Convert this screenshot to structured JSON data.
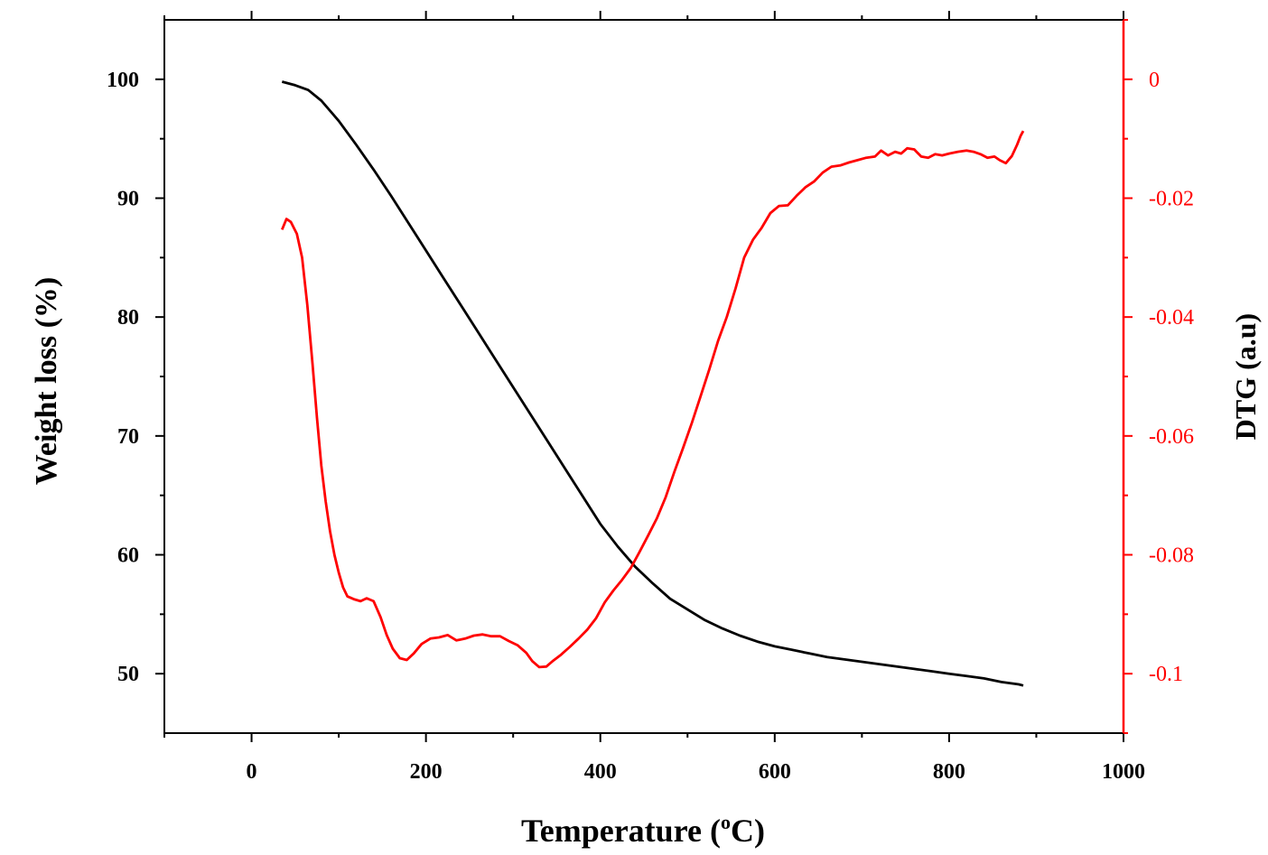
{
  "chart_data": {
    "type": "line",
    "xlabel": "Temperature (",
    "xlabel_sup": "o",
    "xlabel_tail": "C)",
    "ylabel_left": "Weight loss (%)",
    "ylabel_right": "DTG (a.u)",
    "xlim": [
      -100,
      1000
    ],
    "ylim_left": [
      45,
      105
    ],
    "ylim_right": [
      -0.11,
      0.01
    ],
    "x_ticks": [
      0,
      200,
      400,
      600,
      800,
      1000
    ],
    "y_left_ticks": [
      50,
      60,
      70,
      80,
      90,
      100
    ],
    "y_right_ticks": [
      0,
      -0.02,
      -0.04,
      -0.06,
      -0.08,
      -0.1
    ],
    "y_right_tick_labels": [
      "0",
      "-0.02",
      "-0.04",
      "-0.06",
      "-0.08",
      "-0.1"
    ],
    "grid": false,
    "colors": {
      "weight": "#000000",
      "dtg": "#ff0000"
    },
    "series": [
      {
        "axis": "left",
        "color": "#000000",
        "points": [
          [
            35,
            99.8
          ],
          [
            50,
            99.5
          ],
          [
            65,
            99.1
          ],
          [
            80,
            98.2
          ],
          [
            100,
            96.5
          ],
          [
            120,
            94.5
          ],
          [
            140,
            92.4
          ],
          [
            160,
            90.2
          ],
          [
            180,
            87.9
          ],
          [
            200,
            85.6
          ],
          [
            220,
            83.3
          ],
          [
            240,
            81.0
          ],
          [
            260,
            78.7
          ],
          [
            280,
            76.4
          ],
          [
            300,
            74.1
          ],
          [
            320,
            71.8
          ],
          [
            340,
            69.5
          ],
          [
            360,
            67.2
          ],
          [
            380,
            64.9
          ],
          [
            400,
            62.6
          ],
          [
            420,
            60.7
          ],
          [
            440,
            59.0
          ],
          [
            460,
            57.6
          ],
          [
            480,
            56.3
          ],
          [
            500,
            55.4
          ],
          [
            520,
            54.5
          ],
          [
            540,
            53.8
          ],
          [
            560,
            53.2
          ],
          [
            580,
            52.7
          ],
          [
            600,
            52.3
          ],
          [
            620,
            52.0
          ],
          [
            640,
            51.7
          ],
          [
            660,
            51.4
          ],
          [
            680,
            51.2
          ],
          [
            700,
            51.0
          ],
          [
            720,
            50.8
          ],
          [
            740,
            50.6
          ],
          [
            760,
            50.4
          ],
          [
            780,
            50.2
          ],
          [
            800,
            50.0
          ],
          [
            820,
            49.8
          ],
          [
            840,
            49.6
          ],
          [
            860,
            49.3
          ],
          [
            880,
            49.1
          ],
          [
            885,
            49.0
          ]
        ]
      },
      {
        "axis": "right",
        "color": "#ff0000",
        "points": [
          [
            35,
            -0.0253
          ],
          [
            40,
            -0.0235
          ],
          [
            45,
            -0.024
          ],
          [
            52,
            -0.026
          ],
          [
            58,
            -0.03
          ],
          [
            64,
            -0.038
          ],
          [
            70,
            -0.048
          ],
          [
            75,
            -0.057
          ],
          [
            80,
            -0.065
          ],
          [
            85,
            -0.071
          ],
          [
            90,
            -0.076
          ],
          [
            95,
            -0.08
          ],
          [
            100,
            -0.083
          ],
          [
            105,
            -0.0855
          ],
          [
            110,
            -0.087
          ],
          [
            118,
            -0.0875
          ],
          [
            125,
            -0.0878
          ],
          [
            132,
            -0.0873
          ],
          [
            140,
            -0.0878
          ],
          [
            148,
            -0.0905
          ],
          [
            155,
            -0.0935
          ],
          [
            162,
            -0.0958
          ],
          [
            170,
            -0.0974
          ],
          [
            178,
            -0.0977
          ],
          [
            186,
            -0.0966
          ],
          [
            195,
            -0.095
          ],
          [
            205,
            -0.0941
          ],
          [
            215,
            -0.0939
          ],
          [
            225,
            -0.0935
          ],
          [
            235,
            -0.0944
          ],
          [
            245,
            -0.0941
          ],
          [
            255,
            -0.0936
          ],
          [
            265,
            -0.0934
          ],
          [
            275,
            -0.0937
          ],
          [
            285,
            -0.0937
          ],
          [
            295,
            -0.0945
          ],
          [
            305,
            -0.0952
          ],
          [
            315,
            -0.0965
          ],
          [
            322,
            -0.0979
          ],
          [
            330,
            -0.0989
          ],
          [
            338,
            -0.0988
          ],
          [
            346,
            -0.0978
          ],
          [
            355,
            -0.0968
          ],
          [
            365,
            -0.0955
          ],
          [
            375,
            -0.0941
          ],
          [
            385,
            -0.0926
          ],
          [
            395,
            -0.0907
          ],
          [
            405,
            -0.088
          ],
          [
            415,
            -0.086
          ],
          [
            425,
            -0.0842
          ],
          [
            435,
            -0.0822
          ],
          [
            445,
            -0.0795
          ],
          [
            455,
            -0.0767
          ],
          [
            465,
            -0.0738
          ],
          [
            475,
            -0.0703
          ],
          [
            485,
            -0.066
          ],
          [
            495,
            -0.062
          ],
          [
            505,
            -0.0578
          ],
          [
            515,
            -0.0533
          ],
          [
            525,
            -0.0488
          ],
          [
            535,
            -0.044
          ],
          [
            545,
            -0.04
          ],
          [
            555,
            -0.0352
          ],
          [
            565,
            -0.03
          ],
          [
            575,
            -0.027
          ],
          [
            585,
            -0.025
          ],
          [
            595,
            -0.0225
          ],
          [
            605,
            -0.0213
          ],
          [
            615,
            -0.0212
          ],
          [
            625,
            -0.0196
          ],
          [
            635,
            -0.0182
          ],
          [
            645,
            -0.0172
          ],
          [
            655,
            -0.0157
          ],
          [
            665,
            -0.0147
          ],
          [
            675,
            -0.0145
          ],
          [
            685,
            -0.014
          ],
          [
            695,
            -0.0136
          ],
          [
            705,
            -0.0132
          ],
          [
            715,
            -0.013
          ],
          [
            722,
            -0.012
          ],
          [
            730,
            -0.0128
          ],
          [
            738,
            -0.0122
          ],
          [
            745,
            -0.0125
          ],
          [
            752,
            -0.0116
          ],
          [
            760,
            -0.0118
          ],
          [
            768,
            -0.013
          ],
          [
            776,
            -0.0132
          ],
          [
            784,
            -0.0126
          ],
          [
            792,
            -0.0128
          ],
          [
            800,
            -0.0125
          ],
          [
            810,
            -0.0122
          ],
          [
            820,
            -0.012
          ],
          [
            828,
            -0.0122
          ],
          [
            836,
            -0.0126
          ],
          [
            844,
            -0.0132
          ],
          [
            852,
            -0.013
          ],
          [
            858,
            -0.0136
          ],
          [
            865,
            -0.0141
          ],
          [
            872,
            -0.0129
          ],
          [
            878,
            -0.011
          ],
          [
            882,
            -0.0095
          ],
          [
            885,
            -0.0087
          ]
        ]
      }
    ]
  }
}
